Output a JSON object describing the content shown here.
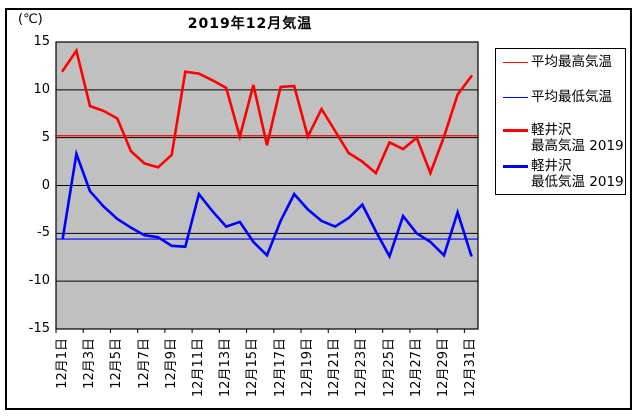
{
  "chart": {
    "title": "2019年12月気温",
    "y_axis": {
      "unit_label": "(℃)",
      "ticks": [
        "15",
        "10",
        "5",
        "0",
        "-5",
        "-10",
        "-15"
      ]
    },
    "x_axis": {
      "tick_labels": [
        "12月1日",
        "12月3日",
        "12月5日",
        "12月7日",
        "12月9日",
        "12月11日",
        "12月13日",
        "12月15日",
        "12月17日",
        "12月19日",
        "12月21日",
        "12月23日",
        "12月25日",
        "12月27日",
        "12月29日",
        "12月31日"
      ]
    }
  },
  "legend": {
    "entries": [
      {
        "key": "avg-high",
        "label_lines": [
          "平均最高気温"
        ],
        "color": "#ff0000",
        "thick": false
      },
      {
        "key": "avg-low",
        "label_lines": [
          "平均最低気温"
        ],
        "color": "#0000ff",
        "thick": false
      },
      {
        "key": "high-2019",
        "label_lines": [
          "軽井沢",
          "最高気温 2019"
        ],
        "color": "#ff0000",
        "thick": true
      },
      {
        "key": "low-2019",
        "label_lines": [
          "軽井沢",
          "最低気温 2019"
        ],
        "color": "#0000ff",
        "thick": true
      }
    ]
  },
  "chart_data": {
    "type": "line",
    "title": "2019年12月気温",
    "categories": [
      "12月1日",
      "12月2日",
      "12月3日",
      "12月4日",
      "12月5日",
      "12月6日",
      "12月7日",
      "12月8日",
      "12月9日",
      "12月10日",
      "12月11日",
      "12月12日",
      "12月13日",
      "12月14日",
      "12月15日",
      "12月16日",
      "12月17日",
      "12月18日",
      "12月19日",
      "12月20日",
      "12月21日",
      "12月22日",
      "12月23日",
      "12月24日",
      "12月25日",
      "12月26日",
      "12月27日",
      "12月28日",
      "12月29日",
      "12月30日",
      "12月31日"
    ],
    "series": [
      {
        "name": "平均最高気温",
        "key": "avg-high",
        "color": "#ff0000",
        "line_width": 1.2,
        "constant_value": 5.2
      },
      {
        "name": "平均最低気温",
        "key": "avg-low",
        "color": "#0000ff",
        "line_width": 1.2,
        "constant_value": -5.6
      },
      {
        "name": "軽井沢 最高気温 2019",
        "key": "high-2019",
        "color": "#ff0000",
        "line_width": 2.6,
        "values": [
          12.0,
          14.1,
          8.3,
          7.8,
          7.0,
          3.6,
          2.3,
          1.9,
          3.2,
          11.9,
          11.7,
          11.0,
          10.2,
          5.1,
          10.5,
          4.2,
          10.3,
          10.4,
          5.1,
          8.0,
          5.7,
          3.4,
          2.5,
          1.3,
          4.5,
          3.8,
          5.0,
          1.3,
          5.1,
          9.5,
          11.4
        ]
      },
      {
        "name": "軽井沢 最低気温 2019",
        "key": "low-2019",
        "color": "#0000ff",
        "line_width": 2.6,
        "values": [
          -5.5,
          3.3,
          -0.6,
          -2.2,
          -3.5,
          -4.4,
          -5.2,
          -5.4,
          -6.3,
          -6.4,
          -0.9,
          -2.7,
          -4.3,
          -3.8,
          -5.9,
          -7.3,
          -3.7,
          -0.9,
          -2.5,
          -3.7,
          -4.3,
          -3.4,
          -2.0,
          -4.8,
          -7.4,
          -3.2,
          -5.0,
          -5.9,
          -7.3,
          -2.8,
          -7.3
        ]
      }
    ],
    "ylim": [
      -15,
      15
    ],
    "ytick_step": 5,
    "x_label_every": 2,
    "grid": "horizontal",
    "plot_bg": "#c0c0c0",
    "legend_position": "right"
  }
}
